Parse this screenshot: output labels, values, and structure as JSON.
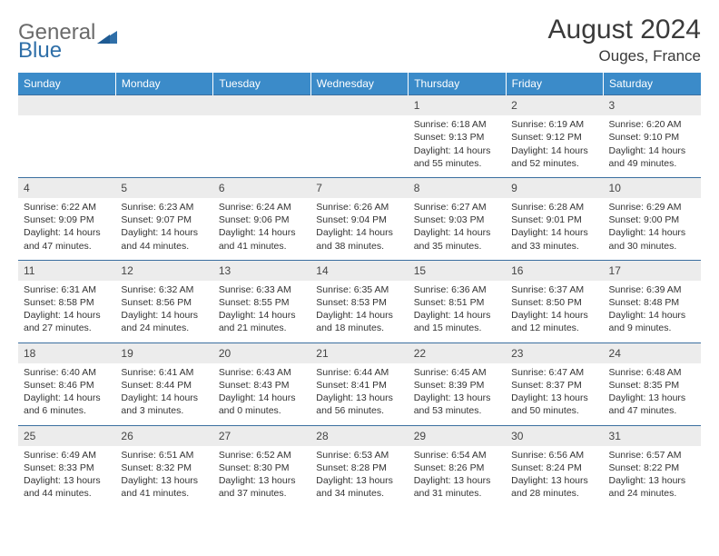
{
  "brand": {
    "part1": "General",
    "part2": "Blue"
  },
  "title": "August 2024",
  "location": "Ouges, France",
  "colors": {
    "header_bg": "#3b8bc9",
    "header_text": "#ffffff",
    "daynum_bg": "#ececec",
    "rule": "#3b6fa0",
    "text": "#333333"
  },
  "weekdays": [
    "Sunday",
    "Monday",
    "Tuesday",
    "Wednesday",
    "Thursday",
    "Friday",
    "Saturday"
  ],
  "weeks": [
    [
      null,
      null,
      null,
      null,
      {
        "n": "1",
        "sr": "6:18 AM",
        "ss": "9:13 PM",
        "dl": "14 hours and 55 minutes."
      },
      {
        "n": "2",
        "sr": "6:19 AM",
        "ss": "9:12 PM",
        "dl": "14 hours and 52 minutes."
      },
      {
        "n": "3",
        "sr": "6:20 AM",
        "ss": "9:10 PM",
        "dl": "14 hours and 49 minutes."
      }
    ],
    [
      {
        "n": "4",
        "sr": "6:22 AM",
        "ss": "9:09 PM",
        "dl": "14 hours and 47 minutes."
      },
      {
        "n": "5",
        "sr": "6:23 AM",
        "ss": "9:07 PM",
        "dl": "14 hours and 44 minutes."
      },
      {
        "n": "6",
        "sr": "6:24 AM",
        "ss": "9:06 PM",
        "dl": "14 hours and 41 minutes."
      },
      {
        "n": "7",
        "sr": "6:26 AM",
        "ss": "9:04 PM",
        "dl": "14 hours and 38 minutes."
      },
      {
        "n": "8",
        "sr": "6:27 AM",
        "ss": "9:03 PM",
        "dl": "14 hours and 35 minutes."
      },
      {
        "n": "9",
        "sr": "6:28 AM",
        "ss": "9:01 PM",
        "dl": "14 hours and 33 minutes."
      },
      {
        "n": "10",
        "sr": "6:29 AM",
        "ss": "9:00 PM",
        "dl": "14 hours and 30 minutes."
      }
    ],
    [
      {
        "n": "11",
        "sr": "6:31 AM",
        "ss": "8:58 PM",
        "dl": "14 hours and 27 minutes."
      },
      {
        "n": "12",
        "sr": "6:32 AM",
        "ss": "8:56 PM",
        "dl": "14 hours and 24 minutes."
      },
      {
        "n": "13",
        "sr": "6:33 AM",
        "ss": "8:55 PM",
        "dl": "14 hours and 21 minutes."
      },
      {
        "n": "14",
        "sr": "6:35 AM",
        "ss": "8:53 PM",
        "dl": "14 hours and 18 minutes."
      },
      {
        "n": "15",
        "sr": "6:36 AM",
        "ss": "8:51 PM",
        "dl": "14 hours and 15 minutes."
      },
      {
        "n": "16",
        "sr": "6:37 AM",
        "ss": "8:50 PM",
        "dl": "14 hours and 12 minutes."
      },
      {
        "n": "17",
        "sr": "6:39 AM",
        "ss": "8:48 PM",
        "dl": "14 hours and 9 minutes."
      }
    ],
    [
      {
        "n": "18",
        "sr": "6:40 AM",
        "ss": "8:46 PM",
        "dl": "14 hours and 6 minutes."
      },
      {
        "n": "19",
        "sr": "6:41 AM",
        "ss": "8:44 PM",
        "dl": "14 hours and 3 minutes."
      },
      {
        "n": "20",
        "sr": "6:43 AM",
        "ss": "8:43 PM",
        "dl": "14 hours and 0 minutes."
      },
      {
        "n": "21",
        "sr": "6:44 AM",
        "ss": "8:41 PM",
        "dl": "13 hours and 56 minutes."
      },
      {
        "n": "22",
        "sr": "6:45 AM",
        "ss": "8:39 PM",
        "dl": "13 hours and 53 minutes."
      },
      {
        "n": "23",
        "sr": "6:47 AM",
        "ss": "8:37 PM",
        "dl": "13 hours and 50 minutes."
      },
      {
        "n": "24",
        "sr": "6:48 AM",
        "ss": "8:35 PM",
        "dl": "13 hours and 47 minutes."
      }
    ],
    [
      {
        "n": "25",
        "sr": "6:49 AM",
        "ss": "8:33 PM",
        "dl": "13 hours and 44 minutes."
      },
      {
        "n": "26",
        "sr": "6:51 AM",
        "ss": "8:32 PM",
        "dl": "13 hours and 41 minutes."
      },
      {
        "n": "27",
        "sr": "6:52 AM",
        "ss": "8:30 PM",
        "dl": "13 hours and 37 minutes."
      },
      {
        "n": "28",
        "sr": "6:53 AM",
        "ss": "8:28 PM",
        "dl": "13 hours and 34 minutes."
      },
      {
        "n": "29",
        "sr": "6:54 AM",
        "ss": "8:26 PM",
        "dl": "13 hours and 31 minutes."
      },
      {
        "n": "30",
        "sr": "6:56 AM",
        "ss": "8:24 PM",
        "dl": "13 hours and 28 minutes."
      },
      {
        "n": "31",
        "sr": "6:57 AM",
        "ss": "8:22 PM",
        "dl": "13 hours and 24 minutes."
      }
    ]
  ],
  "labels": {
    "sunrise": "Sunrise: ",
    "sunset": "Sunset: ",
    "daylight": "Daylight: "
  }
}
